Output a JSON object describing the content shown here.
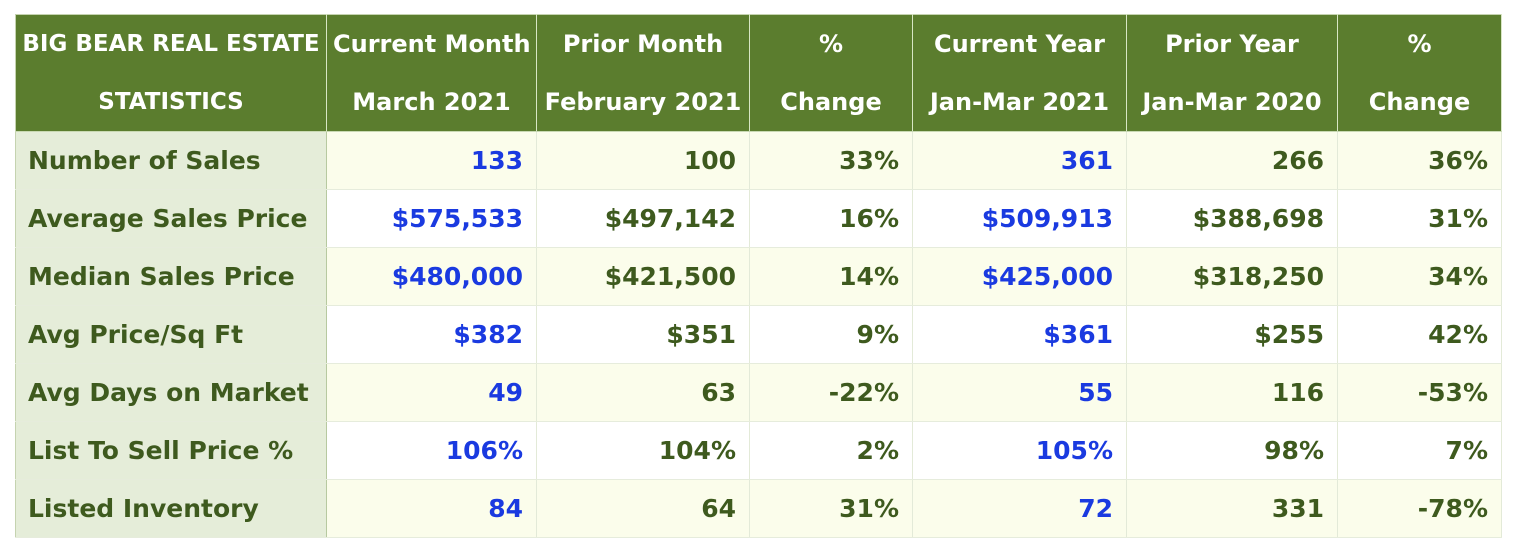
{
  "header": {
    "title_line1": "BIG BEAR REAL ESTATE",
    "title_line2": "STATISTICS",
    "columns": [
      {
        "top": "Current Month",
        "bottom": "March 2021"
      },
      {
        "top": "Prior Month",
        "bottom": "February 2021"
      },
      {
        "top": "%",
        "bottom": "Change"
      },
      {
        "top": "Current Year",
        "bottom": "Jan-Mar 2021"
      },
      {
        "top": "Prior Year",
        "bottom": "Jan-Mar 2020"
      },
      {
        "top": "%",
        "bottom": "Change"
      }
    ]
  },
  "rows": [
    {
      "label": "Number of Sales",
      "values": [
        "133",
        "100",
        "33%",
        "361",
        "266",
        "36%"
      ]
    },
    {
      "label": "Average Sales Price",
      "values": [
        "$575,533",
        "$497,142",
        "16%",
        "$509,913",
        "$388,698",
        "31%"
      ]
    },
    {
      "label": "Median Sales Price",
      "values": [
        "$480,000",
        "$421,500",
        "14%",
        "$425,000",
        "$318,250",
        "34%"
      ]
    },
    {
      "label": "Avg Price/Sq Ft",
      "values": [
        "$382",
        "$351",
        "9%",
        "$361",
        "$255",
        "42%"
      ]
    },
    {
      "label": "Avg Days on Market",
      "values": [
        "49",
        "63",
        "-22%",
        "55",
        "116",
        "-53%"
      ]
    },
    {
      "label": "List To Sell Price %",
      "values": [
        "106%",
        "104%",
        "2%",
        "105%",
        "98%",
        "7%"
      ]
    },
    {
      "label": "Listed Inventory",
      "values": [
        "84",
        "64",
        "31%",
        "72",
        "331",
        "-78%"
      ]
    }
  ],
  "colors": {
    "header_bg": "#5b7d2e",
    "label_bg": "#e5edd9",
    "row_tint": "#fbfdeb",
    "text_green": "#3e5a1e",
    "highlight_blue": "#1a3ae0"
  }
}
